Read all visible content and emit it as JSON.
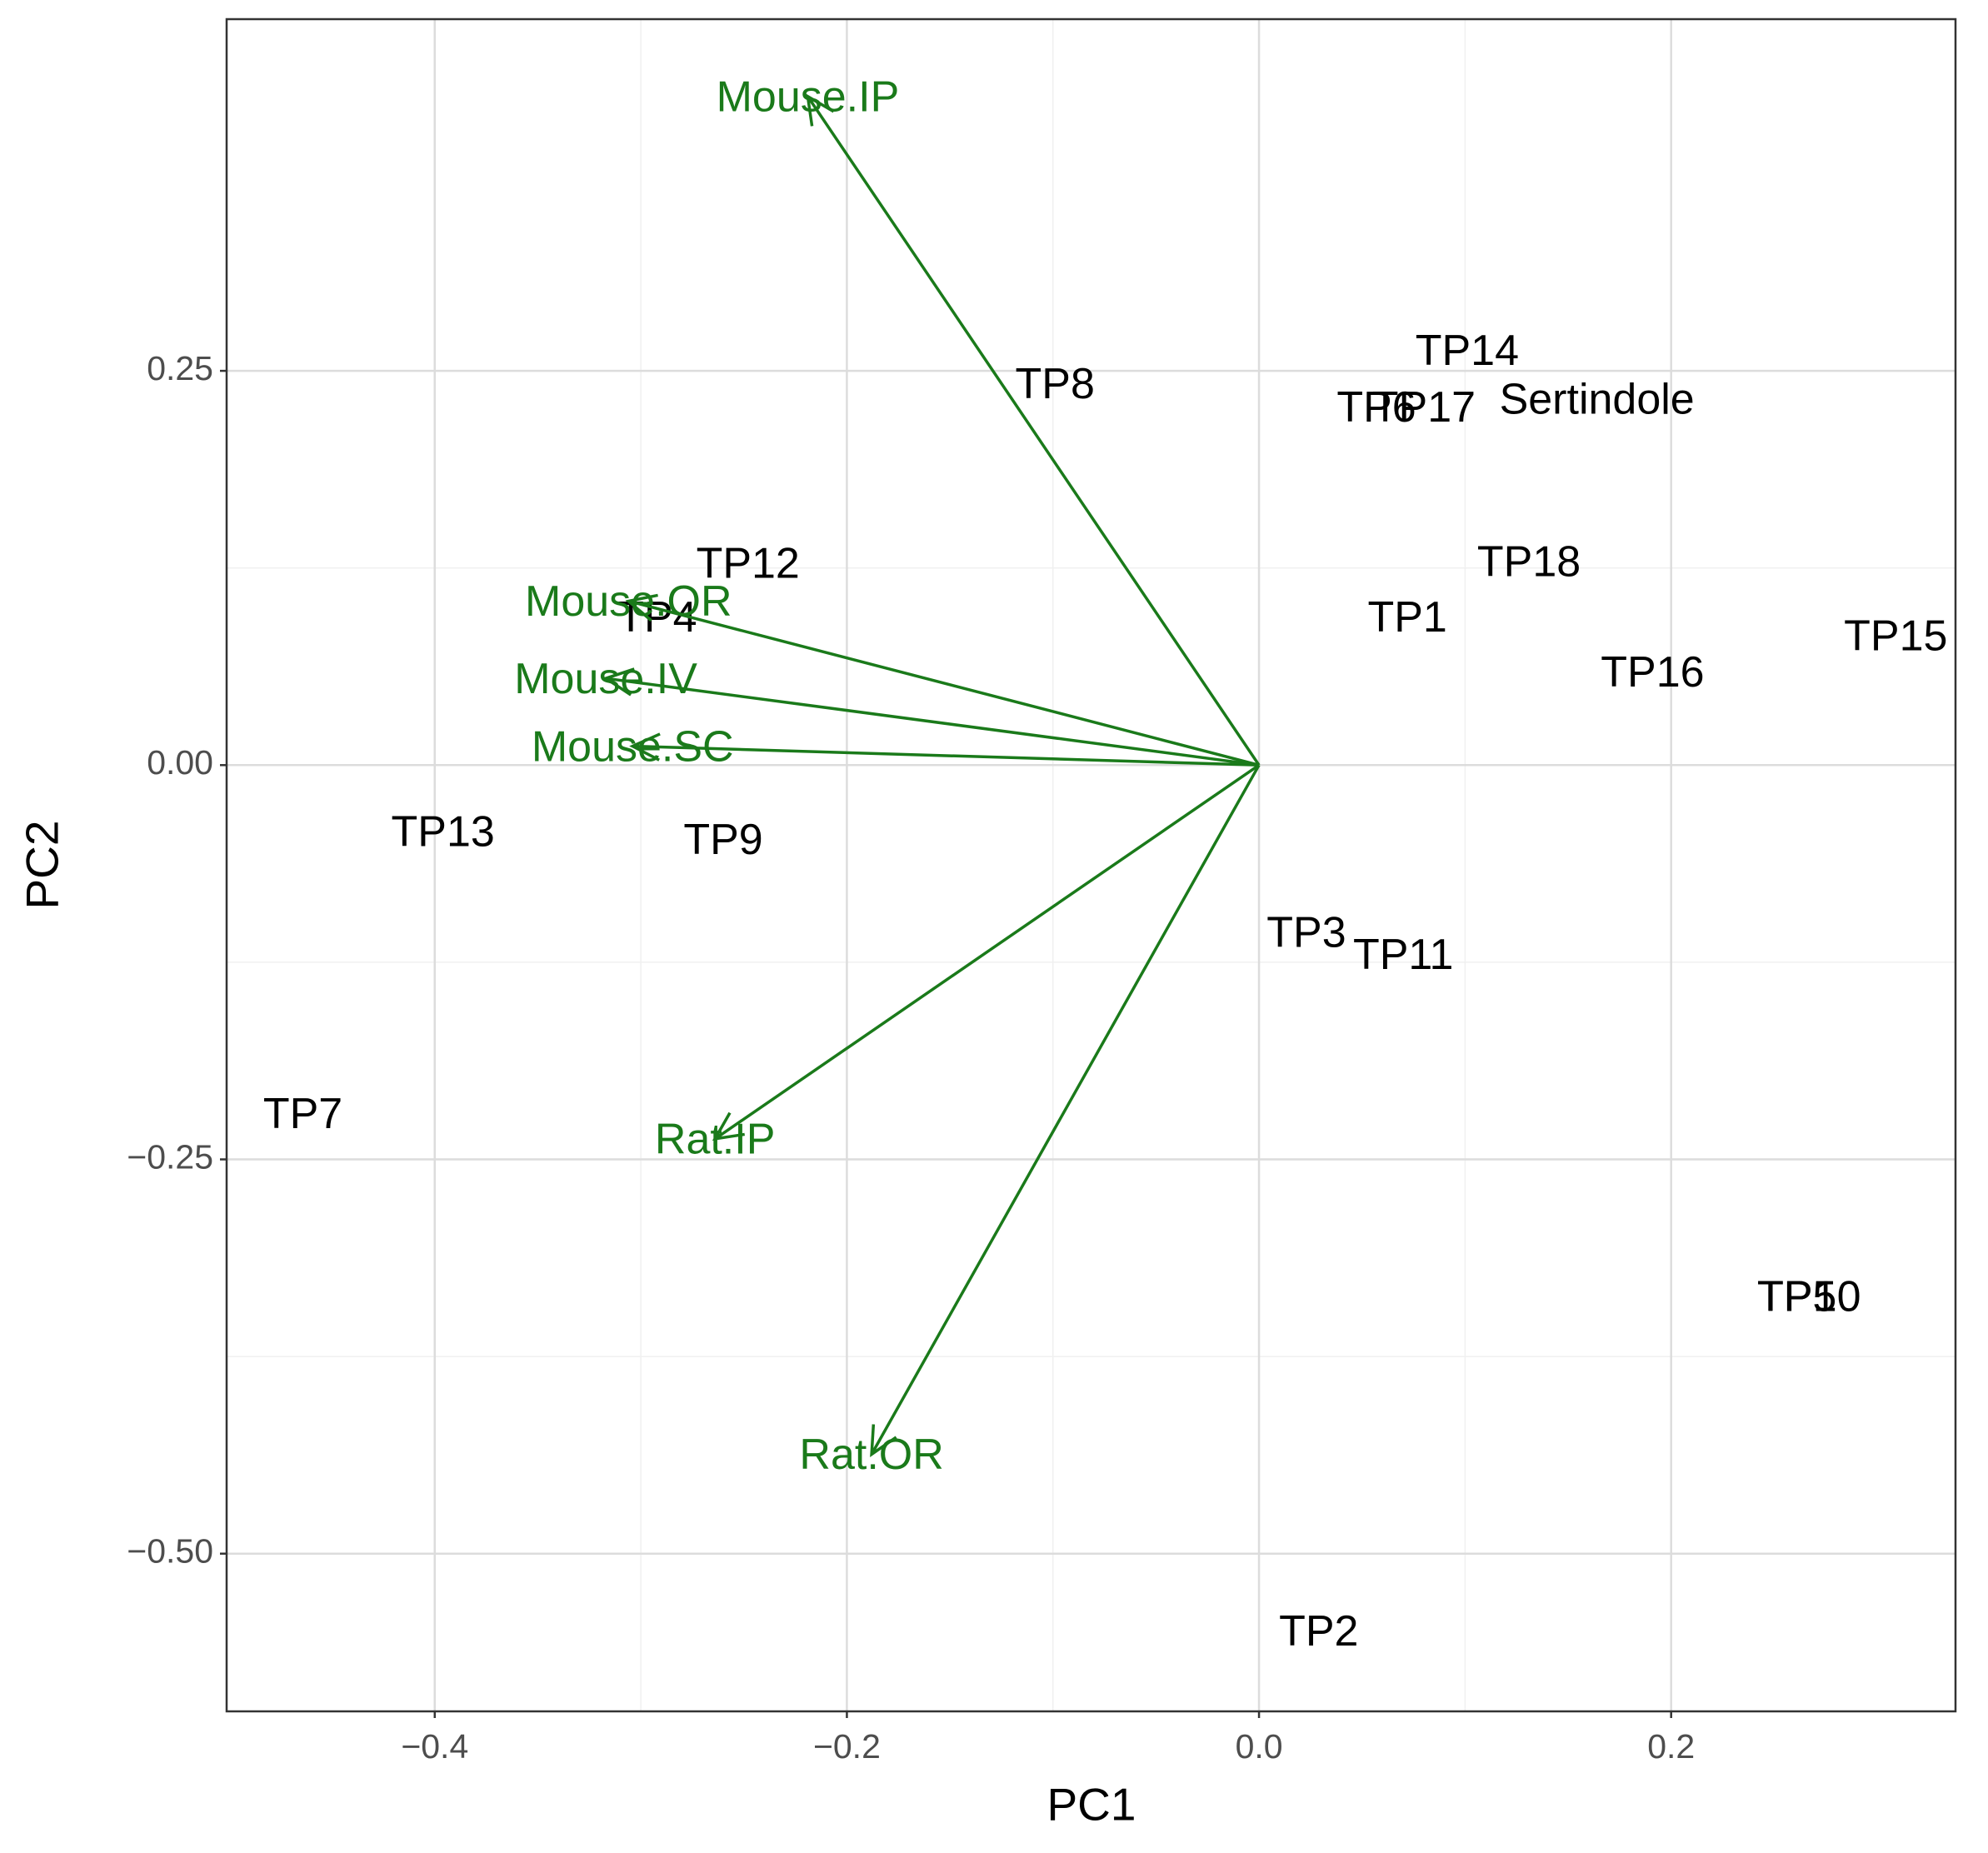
{
  "chart_data": {
    "type": "biplot",
    "xlabel": "PC1",
    "ylabel": "PC2",
    "xlim": [
      -0.501,
      0.338
    ],
    "ylim": [
      -0.6,
      0.473
    ],
    "xticks": [
      {
        "value": -0.4,
        "label": "−0.4"
      },
      {
        "value": -0.2,
        "label": "−0.2"
      },
      {
        "value": 0,
        "label": "0.0"
      },
      0.2
    ],
    "yticks": [
      {
        "value": -0.5,
        "label": "−0.50"
      },
      {
        "value": -0.25,
        "label": "−0.25"
      },
      {
        "value": 0,
        "label": "0.00"
      },
      0.25
    ],
    "grid": true,
    "points": {
      "color": "#000000",
      "labels": [
        "TP8",
        "TP14",
        "TP6",
        "TP17",
        "Sertindole",
        "TP12",
        "TP4",
        "TP18",
        "TP1",
        "TP15",
        "TP16",
        "TP13",
        "TP9",
        "TP3",
        "TP11",
        "TP7",
        "TP5",
        "TP10",
        "TP2"
      ],
      "x": [
        -0.099,
        0.101,
        0.057,
        0.08,
        0.164,
        -0.248,
        -0.292,
        0.131,
        0.072,
        0.309,
        0.191,
        -0.396,
        -0.26,
        0.023,
        0.07,
        -0.464,
        0.261,
        0.267,
        0.029
      ],
      "y": [
        0.24,
        0.261,
        0.225,
        0.225,
        0.23,
        0.126,
        0.092,
        0.127,
        0.092,
        0.08,
        0.057,
        -0.044,
        -0.049,
        -0.108,
        -0.122,
        -0.223,
        -0.339,
        -0.339,
        -0.551
      ]
    },
    "loadings": {
      "color": "#1a7a1a",
      "names": [
        "Mouse.IP",
        "Mouse.OR",
        "Mouse.IV",
        "Mouse.SC",
        "Rat.IP",
        "Rat.OR"
      ],
      "x": [
        -0.219,
        -0.306,
        -0.317,
        -0.304,
        -0.264,
        -0.188
      ],
      "y": [
        0.424,
        0.104,
        0.055,
        0.012,
        -0.237,
        -0.437
      ]
    }
  }
}
